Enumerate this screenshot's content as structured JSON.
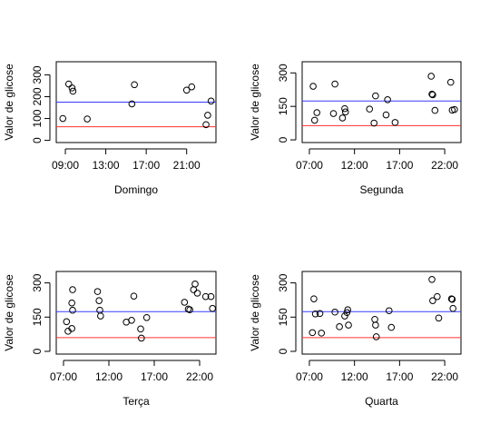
{
  "chart_data": [
    {
      "type": "scatter",
      "xlabel": "Domingo",
      "ylabel": "Valor de glicose",
      "x_ticks": [
        "09:00",
        "13:00",
        "17:00",
        "21:00"
      ],
      "y_ticks": [
        0,
        100,
        200,
        300
      ],
      "ylim": [
        -10,
        360
      ],
      "xlim": [
        "08:06",
        "23:54"
      ],
      "hlines": [
        {
          "color": "#3a3aff",
          "y": 175
        },
        {
          "color": "#ff3030",
          "y": 62
        }
      ],
      "points": [
        {
          "x": "08:45",
          "y": 100
        },
        {
          "x": "09:20",
          "y": 258
        },
        {
          "x": "09:40",
          "y": 240
        },
        {
          "x": "09:45",
          "y": 225
        },
        {
          "x": "11:10",
          "y": 98
        },
        {
          "x": "15:35",
          "y": 167
        },
        {
          "x": "15:50",
          "y": 255
        },
        {
          "x": "21:00",
          "y": 230
        },
        {
          "x": "21:30",
          "y": 245
        },
        {
          "x": "22:55",
          "y": 72
        },
        {
          "x": "23:05",
          "y": 115
        },
        {
          "x": "23:25",
          "y": 180
        }
      ]
    },
    {
      "type": "scatter",
      "xlabel": "Segunda",
      "ylabel": "Valor de glicose",
      "x_ticks": [
        "07:00",
        "12:00",
        "17:00",
        "22:00"
      ],
      "y_ticks": [
        0,
        150,
        300
      ],
      "ylim": [
        -12,
        350
      ],
      "xlim": [
        "06:12",
        "23:48"
      ],
      "hlines": [
        {
          "color": "#3a3aff",
          "y": 174
        },
        {
          "color": "#ff3030",
          "y": 64
        }
      ],
      "points": [
        {
          "x": "07:25",
          "y": 240
        },
        {
          "x": "07:35",
          "y": 88
        },
        {
          "x": "07:50",
          "y": 122
        },
        {
          "x": "09:40",
          "y": 118
        },
        {
          "x": "09:50",
          "y": 250
        },
        {
          "x": "10:40",
          "y": 98
        },
        {
          "x": "10:55",
          "y": 140
        },
        {
          "x": "11:00",
          "y": 125
        },
        {
          "x": "13:40",
          "y": 138
        },
        {
          "x": "14:20",
          "y": 197
        },
        {
          "x": "14:10",
          "y": 75
        },
        {
          "x": "15:30",
          "y": 112
        },
        {
          "x": "15:40",
          "y": 180
        },
        {
          "x": "16:30",
          "y": 78
        },
        {
          "x": "20:30",
          "y": 285
        },
        {
          "x": "20:35",
          "y": 205
        },
        {
          "x": "20:40",
          "y": 202
        },
        {
          "x": "20:55",
          "y": 132
        },
        {
          "x": "22:40",
          "y": 258
        },
        {
          "x": "22:50",
          "y": 133
        },
        {
          "x": "23:05",
          "y": 136
        }
      ]
    },
    {
      "type": "scatter",
      "xlabel": "Terça",
      "ylabel": "Valor de glicose",
      "x_ticks": [
        "07:00",
        "12:00",
        "17:00",
        "22:00"
      ],
      "y_ticks": [
        0,
        150,
        300
      ],
      "ylim": [
        -12,
        350
      ],
      "xlim": [
        "06:12",
        "23:48"
      ],
      "hlines": [
        {
          "color": "#3a3aff",
          "y": 174
        },
        {
          "color": "#ff3030",
          "y": 60
        }
      ],
      "points": [
        {
          "x": "07:20",
          "y": 130
        },
        {
          "x": "07:30",
          "y": 88
        },
        {
          "x": "07:55",
          "y": 100
        },
        {
          "x": "07:55",
          "y": 212
        },
        {
          "x": "08:00",
          "y": 180
        },
        {
          "x": "08:00",
          "y": 270
        },
        {
          "x": "10:45",
          "y": 262
        },
        {
          "x": "10:55",
          "y": 222
        },
        {
          "x": "11:00",
          "y": 180
        },
        {
          "x": "11:05",
          "y": 155
        },
        {
          "x": "13:55",
          "y": 128
        },
        {
          "x": "14:30",
          "y": 136
        },
        {
          "x": "14:45",
          "y": 242
        },
        {
          "x": "15:30",
          "y": 98
        },
        {
          "x": "15:35",
          "y": 58
        },
        {
          "x": "16:10",
          "y": 148
        },
        {
          "x": "20:20",
          "y": 215
        },
        {
          "x": "20:45",
          "y": 185
        },
        {
          "x": "20:55",
          "y": 182
        },
        {
          "x": "21:20",
          "y": 270
        },
        {
          "x": "21:30",
          "y": 295
        },
        {
          "x": "21:45",
          "y": 255
        },
        {
          "x": "22:40",
          "y": 240
        },
        {
          "x": "23:15",
          "y": 240
        },
        {
          "x": "23:25",
          "y": 188
        }
      ]
    },
    {
      "type": "scatter",
      "xlabel": "Quarta",
      "ylabel": "Valor de glicose",
      "x_ticks": [
        "07:00",
        "12:00",
        "17:00",
        "22:00"
      ],
      "y_ticks": [
        0,
        150,
        300
      ],
      "ylim": [
        -12,
        350
      ],
      "xlim": [
        "06:12",
        "23:48"
      ],
      "hlines": [
        {
          "color": "#3a3aff",
          "y": 174
        },
        {
          "color": "#ff3030",
          "y": 60
        }
      ],
      "points": [
        {
          "x": "07:20",
          "y": 82
        },
        {
          "x": "07:30",
          "y": 230
        },
        {
          "x": "07:40",
          "y": 164
        },
        {
          "x": "08:10",
          "y": 166
        },
        {
          "x": "08:20",
          "y": 80
        },
        {
          "x": "09:50",
          "y": 172
        },
        {
          "x": "10:20",
          "y": 108
        },
        {
          "x": "10:55",
          "y": 155
        },
        {
          "x": "11:10",
          "y": 170
        },
        {
          "x": "11:15",
          "y": 182
        },
        {
          "x": "11:20",
          "y": 115
        },
        {
          "x": "14:15",
          "y": 140
        },
        {
          "x": "14:20",
          "y": 115
        },
        {
          "x": "14:25",
          "y": 64
        },
        {
          "x": "15:50",
          "y": 178
        },
        {
          "x": "16:05",
          "y": 105
        },
        {
          "x": "20:35",
          "y": 315
        },
        {
          "x": "20:40",
          "y": 222
        },
        {
          "x": "21:10",
          "y": 240
        },
        {
          "x": "21:20",
          "y": 146
        },
        {
          "x": "22:45",
          "y": 230
        },
        {
          "x": "22:50",
          "y": 228
        },
        {
          "x": "22:55",
          "y": 188
        }
      ]
    }
  ]
}
